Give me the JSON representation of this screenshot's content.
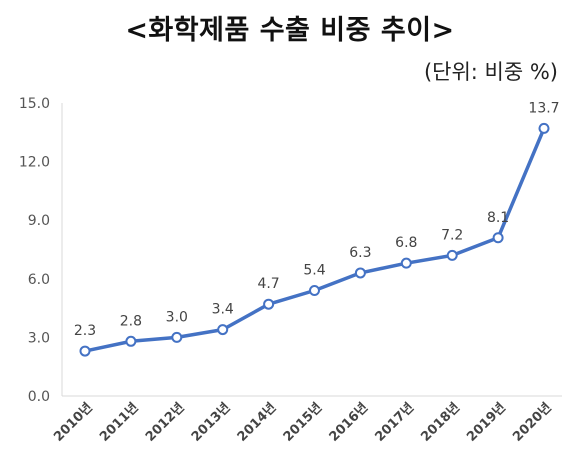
{
  "chart_data": {
    "type": "line",
    "title": "<화학제품 수출 비중 추이>",
    "unit_label": "(단위: 비중 %)",
    "categories": [
      "2010년",
      "2011년",
      "2012년",
      "2013년",
      "2014년",
      "2015년",
      "2016년",
      "2017년",
      "2018년",
      "2019년",
      "2020년"
    ],
    "values": [
      2.3,
      2.8,
      3.0,
      3.4,
      4.7,
      5.4,
      6.3,
      6.8,
      7.2,
      8.1,
      13.7
    ],
    "data_labels": [
      "2.3",
      "2.8",
      "3.0",
      "3.4",
      "4.7",
      "5.4",
      "6.3",
      "6.8",
      "7.2",
      "8.1",
      "13.7"
    ],
    "y_ticks": [
      "0.0",
      "3.0",
      "6.0",
      "9.0",
      "12.0",
      "15.0"
    ],
    "y_tick_values": [
      0,
      3,
      6,
      9,
      12,
      15
    ],
    "ylim": [
      0,
      15
    ],
    "xlabel": "",
    "ylabel": "",
    "grid": false,
    "legend": "none",
    "line_color": "#4472C4",
    "marker_fill": "#ffffff",
    "axis_color": "#d9d9d9"
  }
}
